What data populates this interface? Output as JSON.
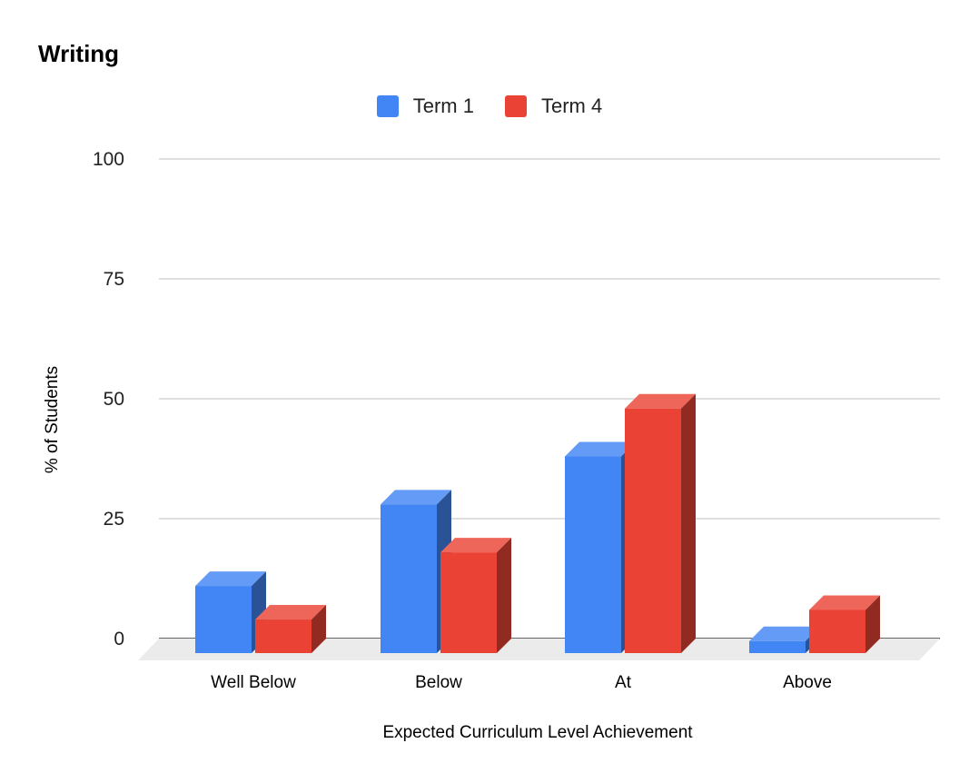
{
  "chart_data": {
    "type": "bar",
    "title": "Writing",
    "xlabel": "Expected Curriculum Level Achievement",
    "ylabel": "% of Students",
    "categories": [
      "Well Below",
      "Below",
      "At",
      "Above"
    ],
    "series": [
      {
        "name": "Term 1",
        "values": [
          14,
          31,
          41,
          2.5
        ],
        "color": "#4285F4"
      },
      {
        "name": "Term 4",
        "values": [
          7,
          21,
          51,
          9
        ],
        "color": "#EA4335"
      }
    ],
    "ylim": [
      0,
      100
    ],
    "yticks": [
      0,
      25,
      50,
      75,
      100
    ],
    "grid": true,
    "legend_position": "top-center",
    "style": "3d"
  }
}
